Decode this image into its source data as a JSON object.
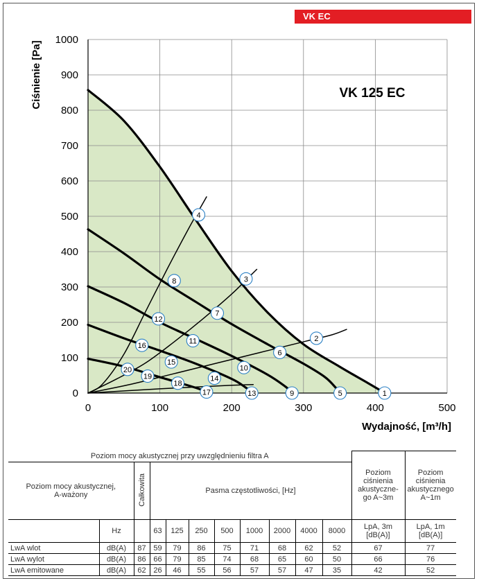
{
  "header": {
    "product_tag": "VK EC"
  },
  "chart_data": {
    "type": "line",
    "title": "VK 125 EC",
    "xlabel": "Wydajność, [m³/h]",
    "ylabel": "Ciśnienie [Pa]",
    "xlim": [
      0,
      500
    ],
    "ylim": [
      0,
      1000
    ],
    "x_ticks": [
      0,
      100,
      200,
      300,
      400,
      500
    ],
    "y_ticks": [
      0,
      100,
      200,
      300,
      400,
      500,
      600,
      700,
      800,
      900,
      1000
    ],
    "grid": true,
    "fill_color": "#d9e8c6",
    "series": [
      {
        "role": "fan-curve",
        "x": [
          0,
          50,
          100,
          150,
          200,
          250,
          300,
          350,
          390,
          405,
          413
        ],
        "y": [
          857,
          770,
          640,
          490,
          345,
          228,
          138,
          75,
          28,
          10,
          0
        ]
      },
      {
        "role": "fan-curve",
        "x": [
          0,
          50,
          100,
          150,
          200,
          250,
          300,
          330,
          345,
          352
        ],
        "y": [
          463,
          395,
          322,
          258,
          195,
          138,
          83,
          45,
          15,
          0
        ]
      },
      {
        "role": "fan-curve",
        "x": [
          0,
          50,
          100,
          150,
          200,
          250,
          275,
          285
        ],
        "y": [
          302,
          255,
          200,
          153,
          105,
          52,
          18,
          0
        ]
      },
      {
        "role": "fan-curve",
        "x": [
          0,
          50,
          100,
          150,
          200,
          220,
          230
        ],
        "y": [
          193,
          155,
          120,
          83,
          40,
          15,
          0
        ]
      },
      {
        "role": "fan-curve",
        "x": [
          0,
          50,
          100,
          150,
          170
        ],
        "y": [
          97,
          75,
          45,
          15,
          0
        ]
      },
      {
        "role": "system-curve",
        "x": [
          0,
          20,
          50,
          80,
          110,
          140,
          158,
          165
        ],
        "y": [
          0,
          25,
          110,
          230,
          350,
          465,
          530,
          555
        ]
      },
      {
        "role": "system-curve",
        "x": [
          0,
          40,
          80,
          120,
          160,
          200,
          225,
          235
        ],
        "y": [
          0,
          40,
          85,
          145,
          210,
          280,
          330,
          350
        ]
      },
      {
        "role": "system-curve",
        "x": [
          0,
          60,
          120,
          180,
          240,
          300,
          340,
          360
        ],
        "y": [
          0,
          25,
          55,
          85,
          115,
          145,
          165,
          180
        ]
      },
      {
        "role": "system-curve",
        "x": [
          0,
          100,
          200,
          230
        ],
        "y": [
          0,
          12,
          22,
          24
        ]
      }
    ],
    "points": [
      {
        "label": "1",
        "x": 413,
        "y": 0
      },
      {
        "label": "2",
        "x": 318,
        "y": 155
      },
      {
        "label": "3",
        "x": 220,
        "y": 323
      },
      {
        "label": "4",
        "x": 154,
        "y": 504
      },
      {
        "label": "5",
        "x": 351,
        "y": 0
      },
      {
        "label": "6",
        "x": 267,
        "y": 115
      },
      {
        "label": "7",
        "x": 180,
        "y": 226
      },
      {
        "label": "8",
        "x": 120,
        "y": 318
      },
      {
        "label": "9",
        "x": 284,
        "y": 0
      },
      {
        "label": "10",
        "x": 217,
        "y": 72
      },
      {
        "label": "11",
        "x": 146,
        "y": 148
      },
      {
        "label": "12",
        "x": 98,
        "y": 210
      },
      {
        "label": "13",
        "x": 228,
        "y": 0
      },
      {
        "label": "14",
        "x": 176,
        "y": 42
      },
      {
        "label": "15",
        "x": 116,
        "y": 88
      },
      {
        "label": "16",
        "x": 75,
        "y": 135
      },
      {
        "label": "17",
        "x": 165,
        "y": 3
      },
      {
        "label": "18",
        "x": 125,
        "y": 28
      },
      {
        "label": "19",
        "x": 83,
        "y": 48
      },
      {
        "label": "20",
        "x": 55,
        "y": 67
      }
    ]
  },
  "table": {
    "top_header": "Poziom mocy akustycznej przy uwzględnieniu filtra A",
    "row_header": "Poziom mocy akustycznej, A-ważony",
    "total_header": "Całkowita",
    "bands_header": "Pasma częstotliwości, [Hz]",
    "pressure3m_header": "Poziom ciśnienia akustyczne-go A~3m",
    "pressure1m_header": "Poziom ciśnienia akustycznego A~1m",
    "hz_label": "Hz",
    "bands": [
      "63",
      "125",
      "250",
      "500",
      "1000",
      "2000",
      "4000",
      "8000"
    ],
    "lpa3m_unit": "LpA, 3m [dB(A)]",
    "lpa1m_unit": "LpA, 1m [dB(A)]",
    "rows": [
      {
        "label": "LwA wlot",
        "unit": "dB(A)",
        "total": "87",
        "values": [
          "59",
          "79",
          "86",
          "75",
          "71",
          "68",
          "62",
          "52"
        ],
        "lpa3m": "67",
        "lpa1m": "77"
      },
      {
        "label": "LwA wylot",
        "unit": "dB(A)",
        "total": "86",
        "values": [
          "66",
          "79",
          "85",
          "74",
          "68",
          "65",
          "60",
          "50"
        ],
        "lpa3m": "66",
        "lpa1m": "76"
      },
      {
        "label": "LwA emitowane",
        "unit": "dB(A)",
        "total": "62",
        "values": [
          "26",
          "46",
          "55",
          "56",
          "57",
          "57",
          "47",
          "35"
        ],
        "lpa3m": "42",
        "lpa1m": "52"
      }
    ]
  }
}
